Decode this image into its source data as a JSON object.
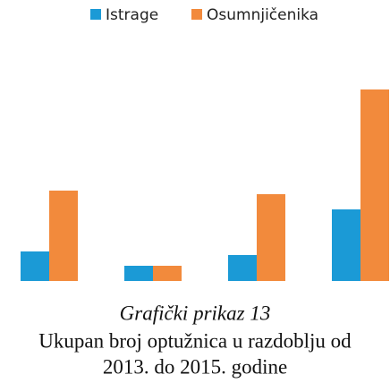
{
  "chart_data": {
    "type": "bar",
    "caption": "Grafički prikaz 13",
    "title": [
      "Ukupan broj optužnica u razdoblju od",
      "2013. do 2015. godine"
    ],
    "categories": [
      null,
      null,
      null,
      null
    ],
    "series": [
      {
        "name": "Istrage",
        "color": "#1b9ad6",
        "values": [
          33,
          17,
          29,
          80
        ]
      },
      {
        "name": "Osumnjičenika",
        "color": "#f28a3c",
        "values": [
          101,
          17,
          97,
          214
        ]
      }
    ],
    "legend": "top"
  }
}
